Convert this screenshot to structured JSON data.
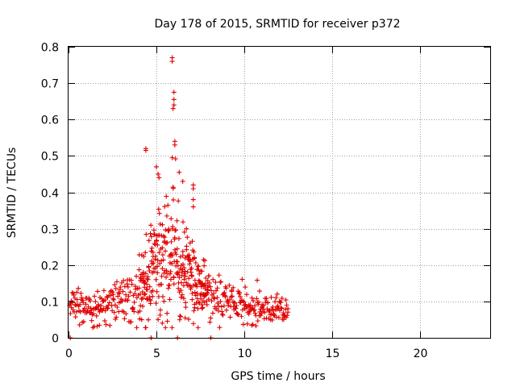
{
  "chart_data": {
    "type": "scatter",
    "title": "Day 178 of 2015, SRMTID for receiver p372",
    "xlabel": "GPS time / hours",
    "ylabel": "SRMTID / TECUs",
    "xlim": [
      0,
      24
    ],
    "ylim": [
      0,
      0.8
    ],
    "xticks": [
      0,
      5,
      10,
      15,
      20
    ],
    "yticks": [
      0,
      0.1,
      0.2,
      0.3,
      0.4,
      0.5,
      0.6,
      0.7,
      0.8
    ],
    "grid": true,
    "marker": "+",
    "color": "#e00000",
    "notable_points": [
      {
        "x": 4.4,
        "y": 0.52
      },
      {
        "x": 4.4,
        "y": 0.515
      },
      {
        "x": 5.9,
        "y": 0.77
      },
      {
        "x": 5.9,
        "y": 0.76
      },
      {
        "x": 6.0,
        "y": 0.675
      },
      {
        "x": 6.0,
        "y": 0.655
      },
      {
        "x": 6.0,
        "y": 0.64
      },
      {
        "x": 5.95,
        "y": 0.63
      },
      {
        "x": 6.05,
        "y": 0.54
      },
      {
        "x": 6.05,
        "y": 0.53
      },
      {
        "x": 5.9,
        "y": 0.495
      },
      {
        "x": 5.0,
        "y": 0.47
      },
      {
        "x": 5.1,
        "y": 0.45
      },
      {
        "x": 5.15,
        "y": 0.44
      },
      {
        "x": 6.3,
        "y": 0.455
      },
      {
        "x": 6.5,
        "y": 0.43
      },
      {
        "x": 7.1,
        "y": 0.42
      },
      {
        "x": 7.1,
        "y": 0.41
      },
      {
        "x": 7.1,
        "y": 0.38
      },
      {
        "x": 7.1,
        "y": 0.36
      }
    ],
    "zero_points": [
      {
        "x": 0.1,
        "y": 0
      },
      {
        "x": 4.7,
        "y": 0
      },
      {
        "x": 6.2,
        "y": 0
      },
      {
        "x": 8.1,
        "y": 0
      }
    ],
    "bulk_series": {
      "x_start": 0.05,
      "x_end": 12.5,
      "x_step": 0.025,
      "envelope": [
        [
          0.0,
          0.085
        ],
        [
          0.5,
          0.09
        ],
        [
          1.0,
          0.085
        ],
        [
          1.5,
          0.075
        ],
        [
          2.0,
          0.09
        ],
        [
          2.5,
          0.085
        ],
        [
          3.0,
          0.11
        ],
        [
          3.5,
          0.115
        ],
        [
          4.0,
          0.13
        ],
        [
          4.5,
          0.155
        ],
        [
          5.0,
          0.21
        ],
        [
          5.5,
          0.23
        ],
        [
          6.0,
          0.21
        ],
        [
          6.5,
          0.19
        ],
        [
          7.0,
          0.16
        ],
        [
          7.5,
          0.14
        ],
        [
          8.0,
          0.12
        ],
        [
          8.5,
          0.105
        ],
        [
          9.0,
          0.1
        ],
        [
          9.5,
          0.09
        ],
        [
          10.0,
          0.085
        ],
        [
          10.5,
          0.08
        ],
        [
          11.0,
          0.08
        ],
        [
          11.5,
          0.08
        ],
        [
          12.0,
          0.075
        ],
        [
          12.5,
          0.065
        ]
      ],
      "spread": [
        [
          0.0,
          0.03
        ],
        [
          3.0,
          0.04
        ],
        [
          4.5,
          0.09
        ],
        [
          5.5,
          0.13
        ],
        [
          6.5,
          0.1
        ],
        [
          7.5,
          0.06
        ],
        [
          9.0,
          0.035
        ],
        [
          12.5,
          0.025
        ]
      ]
    }
  }
}
